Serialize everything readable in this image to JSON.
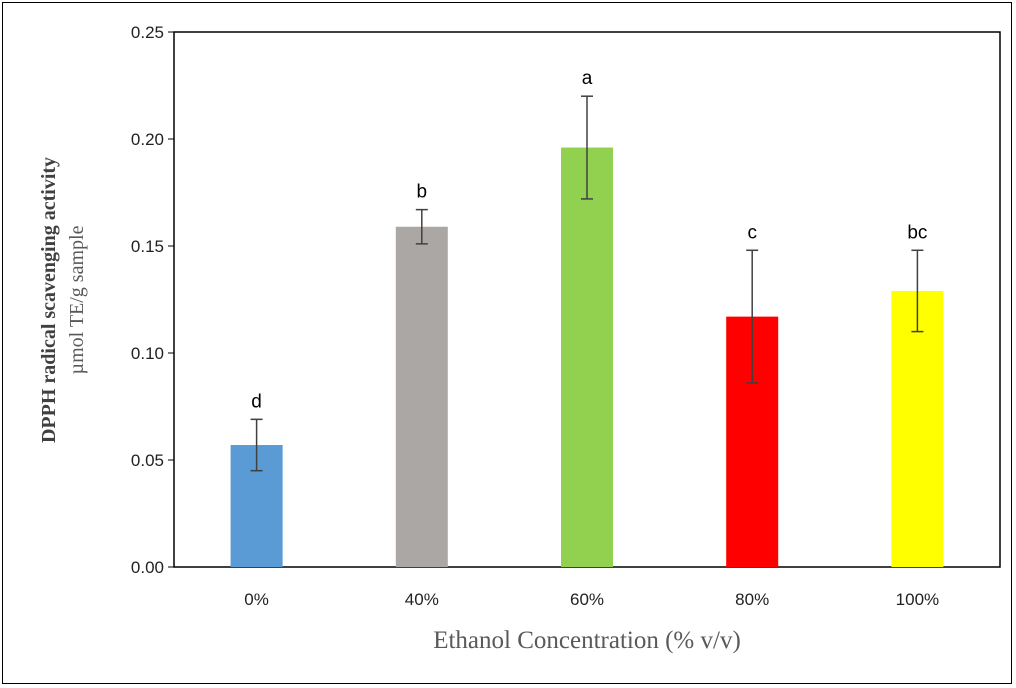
{
  "chart_data": {
    "type": "bar",
    "title": "",
    "xlabel": "Ethanol Concentration (% v/v)",
    "ylabel": "DPPH radical scavenging activity",
    "ylabel_unit": "µmol TE/g sample",
    "categories": [
      "0%",
      "40%",
      "60%",
      "80%",
      "100%"
    ],
    "values": [
      0.057,
      0.159,
      0.196,
      0.117,
      0.129
    ],
    "error": [
      0.012,
      0.008,
      0.024,
      0.031,
      0.019
    ],
    "significance": [
      "d",
      "b",
      "a",
      "c",
      "bc"
    ],
    "colors": [
      "#5B9BD5",
      "#ABA7A4",
      "#92D050",
      "#FF0000",
      "#FFFF00"
    ],
    "ylim": [
      0,
      0.25
    ],
    "yticks": [
      "0.00",
      "0.05",
      "0.10",
      "0.15",
      "0.20",
      "0.25"
    ],
    "ytick_values": [
      0,
      0.05,
      0.1,
      0.15,
      0.2,
      0.25
    ],
    "grid": false,
    "legend": "none"
  }
}
